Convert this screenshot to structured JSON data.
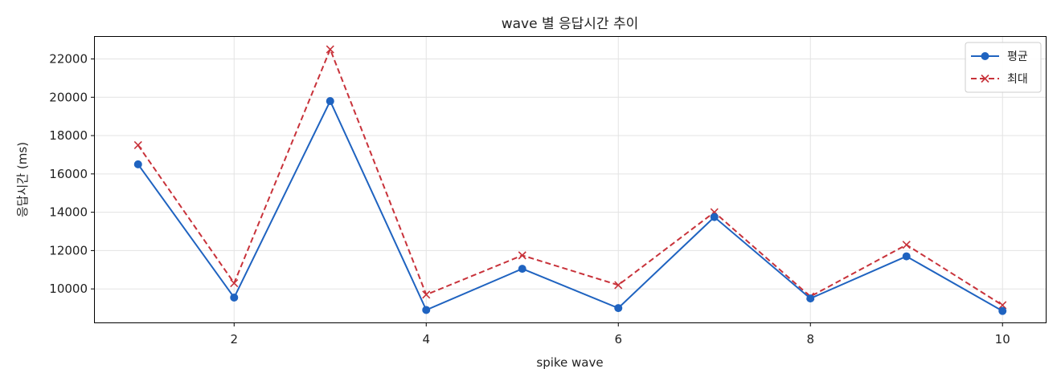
{
  "chart_data": {
    "type": "line",
    "title": "wave 별 응답시간 추이",
    "xlabel": "spike wave",
    "ylabel": "응답시간 (ms)",
    "x": [
      1,
      2,
      3,
      4,
      5,
      6,
      7,
      8,
      9,
      10
    ],
    "xlim": [
      0.55,
      10.45
    ],
    "ylim": [
      8250,
      23150
    ],
    "xticks": [
      2,
      4,
      6,
      8,
      10
    ],
    "yticks": [
      10000,
      12000,
      14000,
      16000,
      18000,
      20000,
      22000
    ],
    "grid": true,
    "legend_position": "top-right",
    "series": [
      {
        "name": "평균",
        "color": "#1f63c0",
        "line_style": "solid",
        "marker": "circle",
        "values": [
          16500,
          9550,
          19800,
          8900,
          11050,
          9000,
          13750,
          9500,
          11700,
          8850
        ]
      },
      {
        "name": "최대",
        "color": "#c8323a",
        "line_style": "dashed",
        "marker": "x",
        "values": [
          17500,
          10300,
          22500,
          9700,
          11750,
          10200,
          14000,
          9600,
          12300,
          9150
        ]
      }
    ]
  }
}
